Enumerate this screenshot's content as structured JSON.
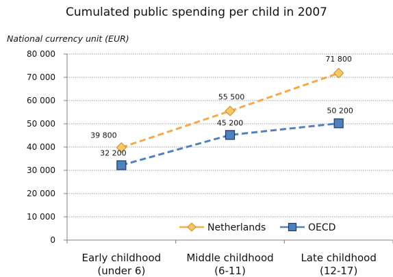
{
  "chart_data": {
    "type": "line",
    "title": "Cumulated public spending per child in 2007",
    "ylabel": "National currency unit (EUR)",
    "xlabel": "",
    "categories": [
      [
        "Early childhood",
        "(under 6)"
      ],
      [
        "Middle childhood",
        "(6-11)"
      ],
      [
        "Late childhood",
        "(12-17)"
      ]
    ],
    "ylim": [
      0,
      80000
    ],
    "yticks": [
      0,
      10000,
      20000,
      30000,
      40000,
      50000,
      60000,
      70000,
      80000
    ],
    "ytick_labels": [
      "0",
      "10 000",
      "20 000",
      "30 000",
      "40 000",
      "50 000",
      "60 000",
      "70 000",
      "80 000"
    ],
    "grid": true,
    "legend_position": "bottom-right",
    "series": [
      {
        "name": "Netherlands",
        "values": [
          39800,
          55500,
          71800
        ],
        "labels": [
          "39 800",
          "55 500",
          "71 800"
        ],
        "color": "#F5A947",
        "marker_fill": "#F5C86A",
        "marker_stroke": "#C98A22",
        "marker": "diamond"
      },
      {
        "name": "OECD",
        "values": [
          32200,
          45200,
          50200
        ],
        "labels": [
          "32 200",
          "45 200",
          "50 200"
        ],
        "color": "#4F81BD",
        "marker_fill": "#4F81BD",
        "marker_stroke": "#1F3864",
        "marker": "square"
      }
    ]
  }
}
